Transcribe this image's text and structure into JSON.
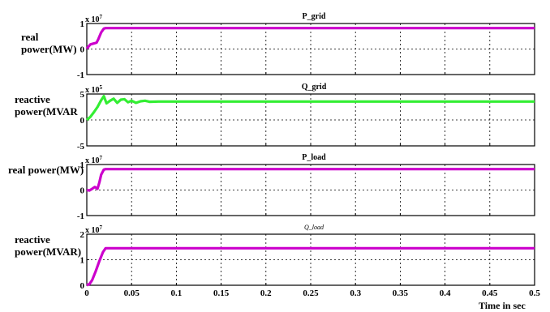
{
  "chart_data": [
    {
      "type": "line",
      "title": "P_grid",
      "ylabel": "real power(MW)",
      "multiplier": "x 10",
      "multiplier_exp": "7",
      "yticks": [
        "1",
        "0",
        "-1"
      ],
      "ylim": [
        -1,
        1
      ],
      "xlim": [
        0,
        0.5
      ],
      "grid": true,
      "series": [
        {
          "color": "#cc00cc",
          "x": [
            0,
            0.004,
            0.008,
            0.011,
            0.013,
            0.016,
            0.019,
            0.021,
            0.025,
            0.5
          ],
          "values": [
            0.02,
            0.18,
            0.22,
            0.25,
            0.4,
            0.65,
            0.8,
            0.82,
            0.82,
            0.82
          ]
        }
      ]
    },
    {
      "type": "line",
      "title": "Q_grid",
      "ylabel": "reactive power(MVAR",
      "multiplier": "x 10",
      "multiplier_exp": "5",
      "yticks": [
        "5",
        "0",
        "-5"
      ],
      "ylim": [
        -5,
        5
      ],
      "xlim": [
        0,
        0.5
      ],
      "grid": true,
      "series": [
        {
          "color": "#33ee33",
          "x": [
            0,
            0.004,
            0.008,
            0.012,
            0.016,
            0.019,
            0.022,
            0.026,
            0.03,
            0.034,
            0.038,
            0.042,
            0.046,
            0.05,
            0.055,
            0.06,
            0.065,
            0.07,
            0.08,
            0.1,
            0.5
          ],
          "values": [
            0,
            0.6,
            1.5,
            2.5,
            3.8,
            4.6,
            3.2,
            3.7,
            4.1,
            3.3,
            3.9,
            4.0,
            3.4,
            3.7,
            3.3,
            3.6,
            3.7,
            3.5,
            3.55,
            3.55,
            3.55
          ]
        }
      ]
    },
    {
      "type": "line",
      "title": "P_load",
      "ylabel": "real power(MW)",
      "multiplier": "x 10",
      "multiplier_exp": "7",
      "yticks": [
        "1",
        "0",
        "-1"
      ],
      "ylim": [
        -1,
        1
      ],
      "xlim": [
        0,
        0.5
      ],
      "grid": true,
      "series": [
        {
          "color": "#cc00cc",
          "x": [
            0,
            0.003,
            0.006,
            0.009,
            0.012,
            0.014,
            0.016,
            0.019,
            0.021,
            0.025,
            0.5
          ],
          "values": [
            0,
            -0.02,
            0.05,
            0.12,
            0.05,
            0.3,
            0.6,
            0.8,
            0.82,
            0.82,
            0.82
          ]
        }
      ]
    },
    {
      "type": "line",
      "title": "Q_load",
      "ylabel": "reactive power(MVAR)",
      "multiplier": "x 10",
      "multiplier_exp": "7",
      "yticks": [
        "2",
        "1",
        "0"
      ],
      "ylim": [
        0,
        2
      ],
      "xlim": [
        0,
        0.5
      ],
      "grid": true,
      "series": [
        {
          "color": "#cc00cc",
          "x": [
            0,
            0.003,
            0.006,
            0.01,
            0.014,
            0.018,
            0.021,
            0.024,
            0.5
          ],
          "values": [
            0,
            0.05,
            0.2,
            0.55,
            0.95,
            1.3,
            1.45,
            1.45,
            1.45
          ]
        }
      ]
    }
  ],
  "xaxis": {
    "label": "Time in sec",
    "ticks": [
      "0",
      "0.05",
      "0.1",
      "0.15",
      "0.2",
      "0.25",
      "0.3",
      "0.35",
      "0.4",
      "0.45",
      "0.5"
    ]
  }
}
